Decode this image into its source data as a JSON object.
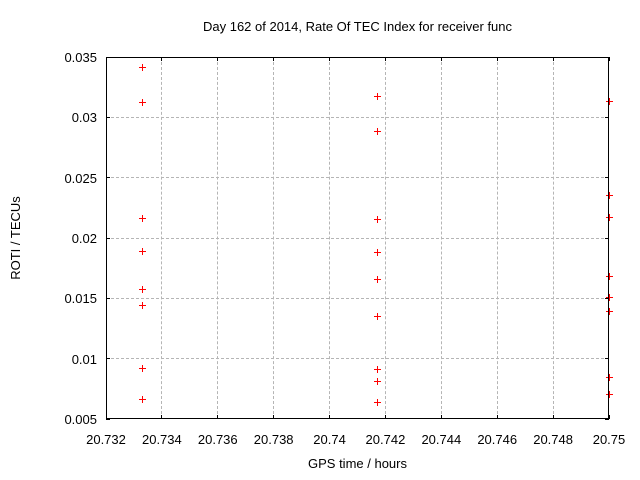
{
  "chart_data": {
    "type": "scatter",
    "title": "Day 162 of 2014, Rate Of TEC Index for receiver func",
    "xlabel": "GPS time / hours",
    "ylabel": "ROTI / TECUs",
    "xlim": [
      20.732,
      20.75
    ],
    "ylim": [
      0.005,
      0.035
    ],
    "xticks": [
      20.732,
      20.734,
      20.736,
      20.738,
      20.74,
      20.742,
      20.744,
      20.746,
      20.748,
      20.75
    ],
    "xtick_labels": [
      "20.732",
      "20.734",
      "20.736",
      "20.738",
      "20.74",
      "20.742",
      "20.744",
      "20.746",
      "20.748",
      "20.75"
    ],
    "yticks": [
      0.005,
      0.01,
      0.015,
      0.02,
      0.025,
      0.03,
      0.035
    ],
    "ytick_labels": [
      "0.005",
      "0.01",
      "0.015",
      "0.02",
      "0.025",
      "0.03",
      "0.035"
    ],
    "grid": true,
    "legend": "none",
    "marker": "plus",
    "series": [
      {
        "name": "ROTI",
        "points": [
          [
            20.7333,
            0.0341
          ],
          [
            20.7333,
            0.0312
          ],
          [
            20.7333,
            0.0216
          ],
          [
            20.7333,
            0.0189
          ],
          [
            20.7333,
            0.0157
          ],
          [
            20.7333,
            0.0144
          ],
          [
            20.7333,
            0.0092
          ],
          [
            20.7333,
            0.0066
          ],
          [
            20.7417,
            0.0317
          ],
          [
            20.7417,
            0.0288
          ],
          [
            20.7417,
            0.0215
          ],
          [
            20.7417,
            0.0188
          ],
          [
            20.7417,
            0.0166
          ],
          [
            20.7417,
            0.0135
          ],
          [
            20.7417,
            0.0091
          ],
          [
            20.7417,
            0.0081
          ],
          [
            20.7417,
            0.0064
          ],
          [
            20.75,
            0.0313
          ],
          [
            20.75,
            0.0235
          ],
          [
            20.75,
            0.0217
          ],
          [
            20.75,
            0.0168
          ],
          [
            20.75,
            0.0151
          ],
          [
            20.75,
            0.0139
          ],
          [
            20.75,
            0.0084
          ],
          [
            20.75,
            0.007
          ]
        ]
      }
    ]
  },
  "colors": {
    "marker": "#ff0000",
    "grid": "#b5b5b5",
    "axis": "#000000",
    "background": "#ffffff",
    "text": "#000000"
  }
}
